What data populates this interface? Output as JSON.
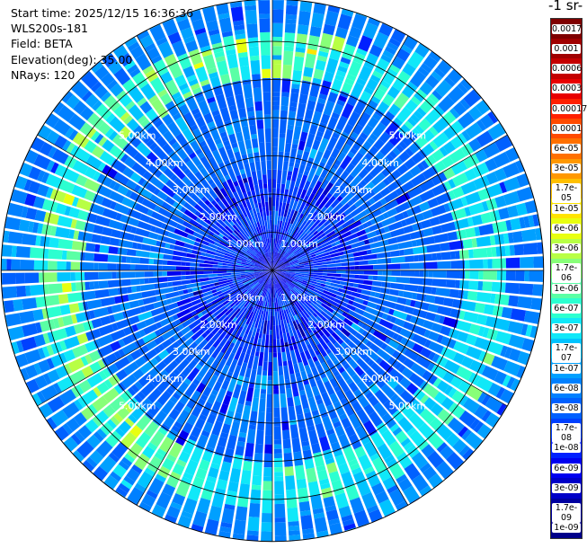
{
  "header": {
    "start_time": "Start time: 2025/12/15 16:36:36",
    "instrument": "WLS200s-181",
    "field": "Field: BETA",
    "elevation": "Elevation(deg): 35.00",
    "nrays": "NRays: 120"
  },
  "colorbar": {
    "title": "-1 sr-",
    "labels": [
      "0.0017",
      "0.001",
      "0.0006",
      "0.0003",
      "0.00017",
      "0.0001",
      "6e-05",
      "3e-05",
      "1.7e-05",
      "1e-05",
      "6e-06",
      "3e-06",
      "1.7e-06",
      "1e-06",
      "6e-07",
      "3e-07",
      "1.7e-07",
      "1e-07",
      "6e-08",
      "3e-08",
      "1.7e-08",
      "1e-08",
      "6e-09",
      "3e-09",
      "1.7e-09",
      "1e-09"
    ],
    "colors": [
      "#7f0000",
      "#a00000",
      "#c40000",
      "#e80000",
      "#ff2000",
      "#ff4a00",
      "#ff7000",
      "#ff9800",
      "#ffc000",
      "#ffe400",
      "#e8ff10",
      "#b8ff45",
      "#88ff78",
      "#5affa5",
      "#2cffd0",
      "#10e8f8",
      "#00c4ff",
      "#00a0ff",
      "#0080ff",
      "#0060ff",
      "#0040ff",
      "#0020ff",
      "#0000f0",
      "#0000c8",
      "#0000a0",
      "#00008a"
    ]
  },
  "chart_data": {
    "type": "heatmap",
    "projection": "polar (PPI)",
    "field": "BETA",
    "n_rays": 120,
    "range_rings_km": [
      1,
      2,
      3,
      4,
      5
    ],
    "range_ring_labels": [
      "1.00km",
      "2.00km",
      "3.00km",
      "4.00km",
      "5.00km"
    ],
    "max_range_km": 7.1,
    "enhanced_ring_range_km": [
      5.0,
      6.2
    ]
  }
}
